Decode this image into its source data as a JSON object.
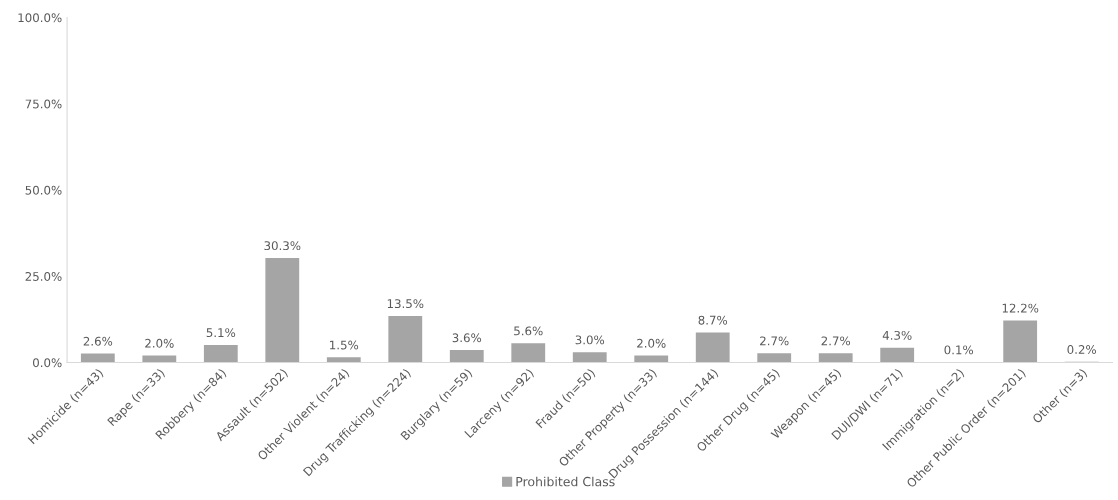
{
  "chart_data": {
    "type": "bar",
    "categories": [
      "Homicide (n=43)",
      "Rape (n=33)",
      "Robbery (n=84)",
      "Assault (n=502)",
      "Other Violent (n=24)",
      "Drug Trafficking (n=224)",
      "Burglary (n=59)",
      "Larceny (n=92)",
      "Fraud (n=50)",
      "Other Property (n=33)",
      "Drug Possession (n=144)",
      "Other Drug (n=45)",
      "Weapon (n=45)",
      "DUI/DWI (n=71)",
      "Immigration (n=2)",
      "Other Public Order (n=201)",
      "Other (n=3)"
    ],
    "series": [
      {
        "name": "Prohibited Class",
        "color": "#a5a5a5",
        "values": [
          2.6,
          2.0,
          5.1,
          30.3,
          1.5,
          13.5,
          3.6,
          5.6,
          3.0,
          2.0,
          8.7,
          2.7,
          2.7,
          4.3,
          0.1,
          12.2,
          0.2
        ],
        "value_labels": [
          "2.6%",
          "2.0%",
          "5.1%",
          "30.3%",
          "1.5%",
          "13.5%",
          "3.6%",
          "5.6%",
          "3.0%",
          "2.0%",
          "8.7%",
          "2.7%",
          "2.7%",
          "4.3%",
          "0.1%",
          "12.2%",
          "0.2%"
        ]
      }
    ],
    "ylim": [
      0,
      100
    ],
    "yticks": [
      {
        "value": 0,
        "label": "0.0%"
      },
      {
        "value": 25,
        "label": "25.0%"
      },
      {
        "value": 50,
        "label": "50.0%"
      },
      {
        "value": 75,
        "label": "75.0%"
      },
      {
        "value": 100,
        "label": "100.0%"
      }
    ],
    "grid": false,
    "legend": "bottom"
  }
}
